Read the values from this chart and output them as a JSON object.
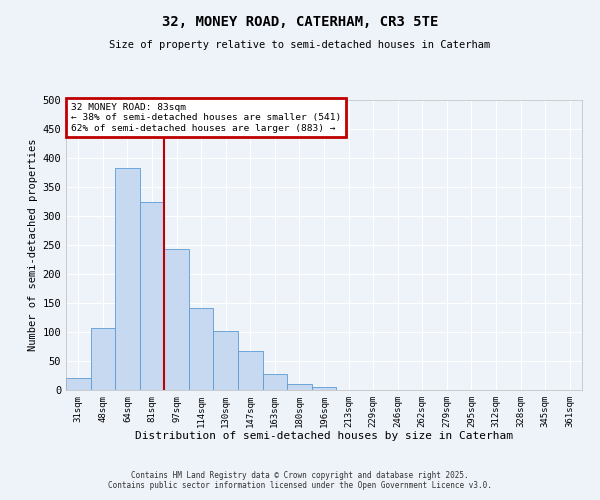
{
  "title": "32, MONEY ROAD, CATERHAM, CR3 5TE",
  "subtitle": "Size of property relative to semi-detached houses in Caterham",
  "xlabel": "Distribution of semi-detached houses by size in Caterham",
  "ylabel": "Number of semi-detached properties",
  "categories": [
    "31sqm",
    "48sqm",
    "64sqm",
    "81sqm",
    "97sqm",
    "114sqm",
    "130sqm",
    "147sqm",
    "163sqm",
    "180sqm",
    "196sqm",
    "213sqm",
    "229sqm",
    "246sqm",
    "262sqm",
    "279sqm",
    "295sqm",
    "312sqm",
    "328sqm",
    "345sqm",
    "361sqm"
  ],
  "values": [
    20,
    107,
    383,
    325,
    243,
    142,
    101,
    68,
    28,
    10,
    5,
    0,
    0,
    0,
    0,
    0,
    0,
    0,
    0,
    0,
    0
  ],
  "bar_color": "#c6d9f0",
  "bar_edge_color": "#5b9bd5",
  "subject_line_index": 3.5,
  "subject_line_color": "#c00000",
  "annotation_text": "32 MONEY ROAD: 83sqm\n← 38% of semi-detached houses are smaller (541)\n62% of semi-detached houses are larger (883) →",
  "annotation_box_color": "#c00000",
  "ylim": [
    0,
    500
  ],
  "yticks": [
    0,
    50,
    100,
    150,
    200,
    250,
    300,
    350,
    400,
    450,
    500
  ],
  "background_color": "#eef2f9",
  "grid_color": "#ffffff",
  "footer_line1": "Contains HM Land Registry data © Crown copyright and database right 2025.",
  "footer_line2": "Contains public sector information licensed under the Open Government Licence v3.0."
}
